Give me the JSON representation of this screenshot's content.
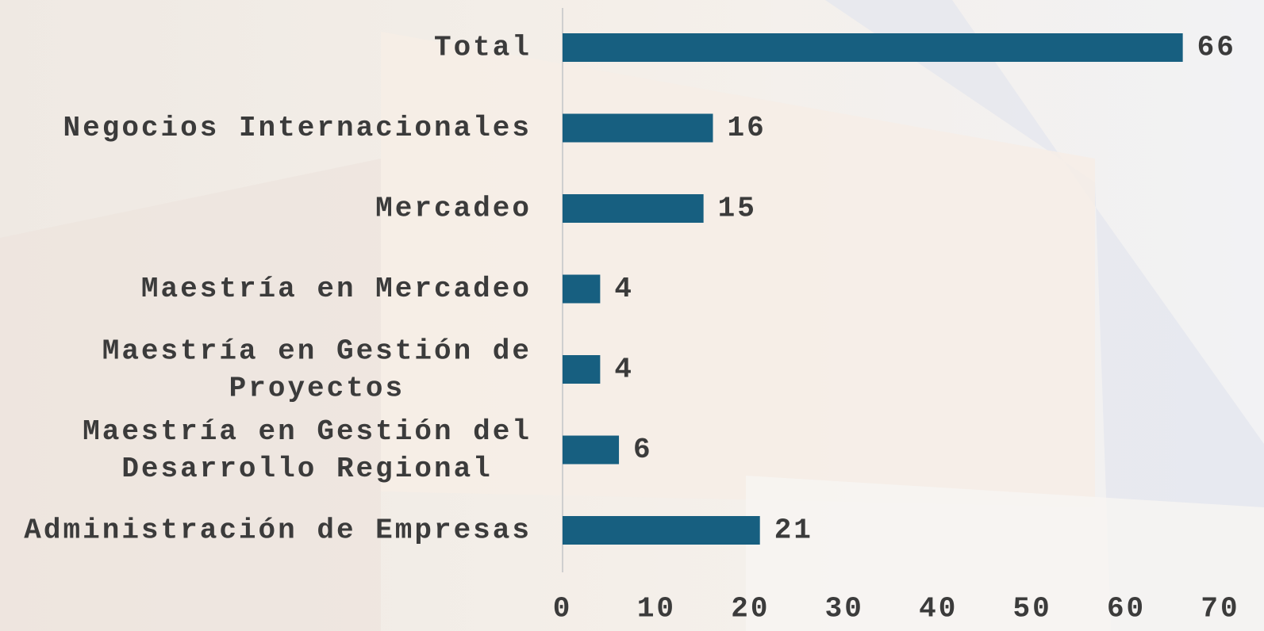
{
  "chart_data": {
    "type": "bar",
    "orientation": "horizontal",
    "categories": [
      "Total",
      "Negocios Internacionales",
      "Mercadeo",
      "Maestría en Mercadeo",
      "Maestría en Gestión de Proyectos",
      "Maestría en Gestión del Desarrollo Regional",
      "Administración de Empresas"
    ],
    "values": [
      66,
      16,
      15,
      4,
      4,
      6,
      21
    ],
    "color": "#175f80",
    "xlim": [
      0,
      70
    ],
    "xticks": [
      0,
      10,
      20,
      30,
      40,
      50,
      60,
      70
    ],
    "grid": false
  }
}
